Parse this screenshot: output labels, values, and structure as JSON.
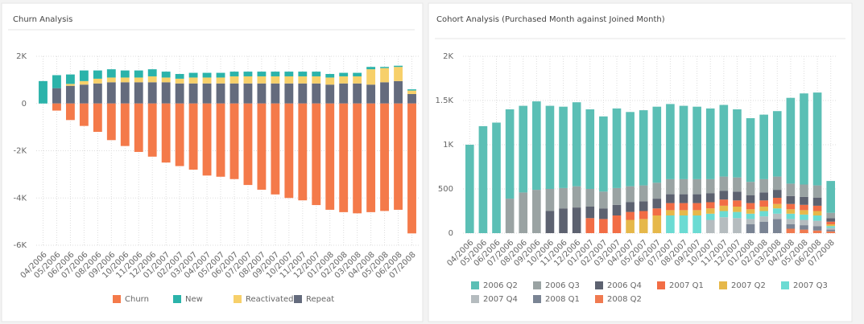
{
  "chart_data": [
    {
      "type": "stacked_bar",
      "title": "Churn Analysis",
      "categories": [
        "04/2006",
        "05/2006",
        "06/2006",
        "07/2006",
        "08/2006",
        "09/2006",
        "10/2006",
        "11/2006",
        "12/2006",
        "01/2007",
        "02/2007",
        "03/2007",
        "04/2007",
        "05/2007",
        "06/2007",
        "07/2007",
        "08/2007",
        "09/2007",
        "10/2007",
        "11/2007",
        "12/2007",
        "01/2008",
        "02/2008",
        "03/2008",
        "04/2008",
        "05/2008",
        "06/2008",
        "07/2008"
      ],
      "series": [
        {
          "name": "Churn",
          "color": "#f47a4a",
          "values": [
            0,
            -300,
            -700,
            -950,
            -1200,
            -1550,
            -1800,
            -2050,
            -2250,
            -2500,
            -2650,
            -2800,
            -3050,
            -3100,
            -3200,
            -3450,
            -3650,
            -3850,
            -4000,
            -4100,
            -4300,
            -4500,
            -4600,
            -4650,
            -4600,
            -4550,
            -4500,
            -5500
          ]
        },
        {
          "name": "New",
          "color": "#2bb3aa",
          "values": [
            950,
            550,
            400,
            450,
            350,
            350,
            300,
            300,
            300,
            250,
            200,
            200,
            200,
            200,
            200,
            200,
            200,
            200,
            200,
            200,
            200,
            150,
            150,
            150,
            100,
            50,
            50,
            50
          ]
        },
        {
          "name": "Reactivated",
          "color": "#f7d06a",
          "values": [
            0,
            0,
            80,
            150,
            200,
            200,
            200,
            200,
            250,
            200,
            200,
            250,
            250,
            250,
            300,
            300,
            300,
            300,
            300,
            300,
            300,
            300,
            300,
            300,
            650,
            600,
            600,
            150
          ]
        },
        {
          "name": "Repeat",
          "color": "#646b7d",
          "values": [
            0,
            650,
            750,
            800,
            850,
            900,
            900,
            900,
            900,
            900,
            850,
            850,
            850,
            850,
            850,
            850,
            850,
            850,
            850,
            850,
            850,
            800,
            850,
            850,
            800,
            900,
            950,
            400
          ]
        }
      ],
      "ylim": [
        -6000,
        2000
      ],
      "yticks": [
        {
          "value": -6000,
          "label": "-6K"
        },
        {
          "value": -4000,
          "label": "-4K"
        },
        {
          "value": -2000,
          "label": "-2K"
        },
        0,
        {
          "value": 2000,
          "label": "2K"
        }
      ],
      "grid": true
    },
    {
      "type": "stacked_bar",
      "title": "Cohort Analysis (Purchased Month against Joined Month)",
      "categories": [
        "04/2006",
        "05/2006",
        "06/2006",
        "07/2006",
        "08/2006",
        "09/2006",
        "10/2006",
        "11/2006",
        "12/2006",
        "01/2007",
        "02/2007",
        "03/2007",
        "04/2007",
        "05/2007",
        "06/2007",
        "07/2007",
        "08/2007",
        "09/2007",
        "10/2007",
        "11/2007",
        "12/2007",
        "01/2008",
        "02/2008",
        "03/2008",
        "04/2008",
        "05/2008",
        "06/2008",
        "07/2008"
      ],
      "series": [
        {
          "name": "2006 Q2",
          "color": "#5bbfb5",
          "values": [
            1000,
            1210,
            1250,
            1010,
            980,
            1000,
            940,
            920,
            950,
            900,
            850,
            900,
            840,
            850,
            860,
            850,
            830,
            820,
            800,
            810,
            770,
            720,
            730,
            740,
            970,
            1030,
            1050,
            360
          ]
        },
        {
          "name": "2006 Q3",
          "color": "#9aa3a3",
          "values": [
            null,
            null,
            null,
            390,
            460,
            490,
            250,
            230,
            240,
            200,
            190,
            190,
            180,
            180,
            180,
            170,
            170,
            170,
            160,
            160,
            160,
            150,
            150,
            150,
            140,
            140,
            140,
            60
          ]
        },
        {
          "name": "2006 Q4",
          "color": "#5d6270",
          "values": [
            null,
            null,
            null,
            null,
            null,
            null,
            250,
            280,
            290,
            130,
            120,
            120,
            110,
            110,
            110,
            100,
            100,
            100,
            100,
            100,
            100,
            90,
            90,
            90,
            90,
            90,
            90,
            40
          ]
        },
        {
          "name": "2007 Q1",
          "color": "#f26d45",
          "values": [
            null,
            null,
            null,
            null,
            null,
            null,
            null,
            null,
            null,
            170,
            160,
            200,
            90,
            90,
            80,
            80,
            80,
            80,
            70,
            70,
            70,
            70,
            70,
            70,
            60,
            60,
            60,
            30
          ]
        },
        {
          "name": "2007 Q2",
          "color": "#e6b84a",
          "values": [
            null,
            null,
            null,
            null,
            null,
            null,
            null,
            null,
            null,
            null,
            null,
            null,
            150,
            160,
            200,
            60,
            60,
            60,
            60,
            60,
            60,
            50,
            50,
            50,
            50,
            50,
            50,
            20
          ]
        },
        {
          "name": "2007 Q3",
          "color": "#6bdbd3",
          "values": [
            null,
            null,
            null,
            null,
            null,
            null,
            null,
            null,
            null,
            null,
            null,
            null,
            null,
            null,
            null,
            200,
            200,
            200,
            70,
            70,
            70,
            60,
            60,
            60,
            60,
            60,
            60,
            20
          ]
        },
        {
          "name": "2007 Q4",
          "color": "#b5bcbf",
          "values": [
            null,
            null,
            null,
            null,
            null,
            null,
            null,
            null,
            null,
            null,
            null,
            null,
            null,
            null,
            null,
            null,
            null,
            null,
            150,
            180,
            170,
            60,
            60,
            60,
            60,
            60,
            60,
            20
          ]
        },
        {
          "name": "2008 Q1",
          "color": "#7a8494",
          "values": [
            null,
            null,
            null,
            null,
            null,
            null,
            null,
            null,
            null,
            null,
            null,
            null,
            null,
            null,
            null,
            null,
            null,
            null,
            null,
            null,
            null,
            100,
            130,
            160,
            50,
            50,
            50,
            20
          ]
        },
        {
          "name": "2008 Q2",
          "color": "#f07a50",
          "values": [
            null,
            null,
            null,
            null,
            null,
            null,
            null,
            null,
            null,
            null,
            null,
            null,
            null,
            null,
            null,
            null,
            null,
            null,
            null,
            null,
            null,
            null,
            null,
            null,
            50,
            40,
            30,
            20
          ]
        }
      ],
      "ylim": [
        0,
        2000
      ],
      "yticks": [
        0,
        500,
        {
          "value": 1000,
          "label": "1K"
        },
        {
          "value": 1500,
          "label": "1.5K"
        },
        {
          "value": 2000,
          "label": "2K"
        }
      ],
      "grid": true
    }
  ]
}
